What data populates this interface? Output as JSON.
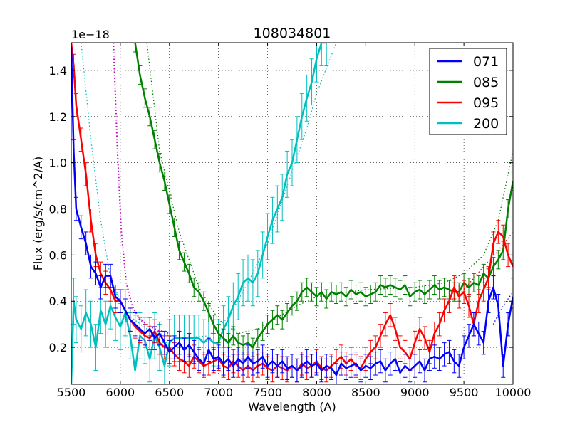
{
  "chart_data": {
    "type": "line",
    "title": "108034801",
    "xlabel": "Wavelength (A)",
    "ylabel": "Flux (erg/s/cm^2/A)",
    "offset_text": "1e−18",
    "xlim": [
      5500,
      10000
    ],
    "ylim": [
      0.04,
      1.52
    ],
    "grid": true,
    "legend_position": "top-right",
    "x_ticks": [
      5500,
      6000,
      6500,
      7000,
      7500,
      8000,
      8500,
      9000,
      9500,
      10000
    ],
    "x_tick_labels": [
      "5500",
      "6000",
      "6500",
      "7000",
      "7500",
      "8000",
      "8500",
      "9000",
      "9500",
      "10000"
    ],
    "y_ticks": [
      0.2,
      0.4,
      0.6,
      0.8,
      1.0,
      1.2,
      1.4
    ],
    "y_tick_labels": [
      "0.2",
      "0.4",
      "0.6",
      "0.8",
      "1.0",
      "1.2",
      "1.4"
    ],
    "colors": {
      "blue": "#0000ff",
      "green": "#008000",
      "red": "#ff0000",
      "cyan": "#00bfbf",
      "purple": "#bf00bf",
      "grid": "#000000"
    },
    "series": [
      {
        "name": "071",
        "color": "#0000ff",
        "err": 0.05,
        "x": [
          5500,
          5525,
          5550,
          5600,
          5650,
          5700,
          5750,
          5800,
          5850,
          5900,
          5950,
          6000,
          6050,
          6100,
          6150,
          6200,
          6250,
          6300,
          6350,
          6400,
          6450,
          6500,
          6550,
          6600,
          6650,
          6700,
          6750,
          6800,
          6850,
          6900,
          6950,
          7000,
          7050,
          7100,
          7150,
          7200,
          7250,
          7300,
          7350,
          7400,
          7450,
          7500,
          7550,
          7600,
          7650,
          7700,
          7750,
          7800,
          7850,
          7900,
          7950,
          8000,
          8050,
          8100,
          8150,
          8200,
          8250,
          8300,
          8350,
          8400,
          8450,
          8500,
          8550,
          8600,
          8650,
          8700,
          8750,
          8800,
          8850,
          8900,
          8950,
          9000,
          9050,
          9100,
          9150,
          9200,
          9250,
          9300,
          9350,
          9400,
          9450,
          9500,
          9550,
          9600,
          9650,
          9700,
          9750,
          9800,
          9850,
          9900,
          9950,
          10000
        ],
        "y": [
          1.5,
          1.05,
          0.8,
          0.72,
          0.65,
          0.55,
          0.52,
          0.46,
          0.51,
          0.51,
          0.42,
          0.4,
          0.36,
          0.32,
          0.3,
          0.28,
          0.26,
          0.28,
          0.24,
          0.26,
          0.22,
          0.18,
          0.2,
          0.22,
          0.19,
          0.21,
          0.18,
          0.15,
          0.13,
          0.19,
          0.15,
          0.16,
          0.13,
          0.15,
          0.12,
          0.15,
          0.13,
          0.16,
          0.13,
          0.14,
          0.16,
          0.12,
          0.14,
          0.12,
          0.14,
          0.11,
          0.12,
          0.1,
          0.12,
          0.14,
          0.12,
          0.13,
          0.1,
          0.12,
          0.11,
          0.08,
          0.13,
          0.11,
          0.12,
          0.13,
          0.1,
          0.12,
          0.11,
          0.13,
          0.14,
          0.1,
          0.13,
          0.15,
          0.09,
          0.12,
          0.1,
          0.12,
          0.14,
          0.1,
          0.15,
          0.16,
          0.15,
          0.17,
          0.18,
          0.14,
          0.12,
          0.2,
          0.25,
          0.3,
          0.26,
          0.22,
          0.4,
          0.46,
          0.38,
          0.12,
          0.3,
          0.42
        ]
      },
      {
        "name": "085",
        "color": "#008000",
        "err": 0.04,
        "x": [
          6150,
          6200,
          6250,
          6300,
          6350,
          6400,
          6450,
          6500,
          6550,
          6600,
          6650,
          6700,
          6750,
          6800,
          6850,
          6900,
          6950,
          7000,
          7050,
          7100,
          7150,
          7200,
          7250,
          7300,
          7350,
          7400,
          7450,
          7500,
          7550,
          7600,
          7650,
          7700,
          7750,
          7800,
          7850,
          7900,
          7950,
          8000,
          8050,
          8100,
          8150,
          8200,
          8250,
          8300,
          8350,
          8400,
          8450,
          8500,
          8550,
          8600,
          8650,
          8700,
          8750,
          8800,
          8850,
          8900,
          8950,
          9000,
          9050,
          9100,
          9150,
          9200,
          9250,
          9300,
          9350,
          9400,
          9450,
          9500,
          9550,
          9600,
          9650,
          9700,
          9750,
          9800,
          9850,
          9900,
          9950,
          10000
        ],
        "y": [
          1.52,
          1.38,
          1.28,
          1.2,
          1.1,
          1.0,
          0.92,
          0.82,
          0.72,
          0.62,
          0.57,
          0.52,
          0.46,
          0.44,
          0.4,
          0.35,
          0.3,
          0.26,
          0.24,
          0.22,
          0.25,
          0.22,
          0.21,
          0.22,
          0.2,
          0.24,
          0.27,
          0.3,
          0.32,
          0.34,
          0.32,
          0.35,
          0.38,
          0.4,
          0.44,
          0.46,
          0.44,
          0.42,
          0.44,
          0.41,
          0.44,
          0.43,
          0.44,
          0.42,
          0.45,
          0.43,
          0.44,
          0.42,
          0.43,
          0.44,
          0.47,
          0.46,
          0.47,
          0.46,
          0.45,
          0.47,
          0.42,
          0.44,
          0.45,
          0.43,
          0.45,
          0.47,
          0.45,
          0.46,
          0.45,
          0.44,
          0.44,
          0.48,
          0.46,
          0.48,
          0.47,
          0.52,
          0.5,
          0.55,
          0.58,
          0.62,
          0.8,
          0.92
        ]
      },
      {
        "name": "095",
        "color": "#ff0000",
        "err": 0.05,
        "x": [
          5500,
          5525,
          5550,
          5600,
          5650,
          5700,
          5750,
          5800,
          5850,
          5900,
          5950,
          6000,
          6050,
          6100,
          6150,
          6200,
          6250,
          6300,
          6350,
          6400,
          6450,
          6500,
          6550,
          6600,
          6650,
          6700,
          6750,
          6800,
          6850,
          6900,
          6950,
          7000,
          7050,
          7100,
          7150,
          7200,
          7250,
          7300,
          7350,
          7400,
          7450,
          7500,
          7550,
          7600,
          7650,
          7700,
          7750,
          7800,
          7850,
          7900,
          7950,
          8000,
          8050,
          8100,
          8150,
          8200,
          8250,
          8300,
          8350,
          8400,
          8450,
          8500,
          8550,
          8600,
          8650,
          8700,
          8750,
          8800,
          8850,
          8900,
          8950,
          9000,
          9050,
          9100,
          9150,
          9200,
          9250,
          9300,
          9350,
          9400,
          9450,
          9500,
          9550,
          9600,
          9650,
          9700,
          9750,
          9800,
          9850,
          9900,
          9950,
          10000
        ],
        "y": [
          1.52,
          1.42,
          1.25,
          1.1,
          0.95,
          0.75,
          0.6,
          0.52,
          0.48,
          0.45,
          0.4,
          0.4,
          0.36,
          0.32,
          0.29,
          0.27,
          0.25,
          0.24,
          0.27,
          0.22,
          0.2,
          0.2,
          0.17,
          0.15,
          0.14,
          0.12,
          0.16,
          0.14,
          0.12,
          0.13,
          0.14,
          0.15,
          0.12,
          0.11,
          0.14,
          0.12,
          0.1,
          0.12,
          0.1,
          0.12,
          0.13,
          0.11,
          0.1,
          0.12,
          0.11,
          0.1,
          0.12,
          0.1,
          0.13,
          0.11,
          0.12,
          0.14,
          0.11,
          0.1,
          0.12,
          0.14,
          0.16,
          0.13,
          0.15,
          0.12,
          0.11,
          0.15,
          0.18,
          0.2,
          0.25,
          0.3,
          0.34,
          0.28,
          0.2,
          0.18,
          0.15,
          0.22,
          0.28,
          0.24,
          0.18,
          0.26,
          0.3,
          0.36,
          0.4,
          0.46,
          0.42,
          0.44,
          0.38,
          0.3,
          0.4,
          0.45,
          0.5,
          0.65,
          0.7,
          0.68,
          0.6,
          0.55
        ]
      },
      {
        "name": "200",
        "color": "#00bfbf",
        "err": 0.1,
        "x": [
          5500,
          5525,
          5550,
          5600,
          5650,
          5700,
          5750,
          5800,
          5850,
          5900,
          5950,
          6000,
          6050,
          6100,
          6150,
          6200,
          6250,
          6300,
          6350,
          6400,
          6450,
          6500,
          6550,
          6600,
          6650,
          6700,
          6750,
          6800,
          6850,
          6900,
          6950,
          7000,
          7050,
          7100,
          7150,
          7200,
          7250,
          7300,
          7350,
          7400,
          7450,
          7500,
          7550,
          7600,
          7650,
          7700,
          7750,
          7800,
          7850,
          7900,
          7950,
          8000,
          8050,
          8100
        ],
        "y": [
          0.04,
          0.4,
          0.32,
          0.28,
          0.35,
          0.3,
          0.2,
          0.36,
          0.3,
          0.38,
          0.33,
          0.29,
          0.35,
          0.25,
          0.1,
          0.25,
          0.23,
          0.15,
          0.25,
          0.2,
          0.12,
          0.22,
          0.24,
          0.24,
          0.24,
          0.24,
          0.24,
          0.24,
          0.22,
          0.24,
          0.22,
          0.22,
          0.28,
          0.32,
          0.38,
          0.42,
          0.48,
          0.5,
          0.48,
          0.52,
          0.6,
          0.68,
          0.75,
          0.8,
          0.85,
          0.95,
          1.0,
          1.1,
          1.2,
          1.28,
          1.35,
          1.45,
          1.52,
          1.52
        ]
      }
    ],
    "model_curves": [
      {
        "name": "071 model",
        "color": "#0000ff",
        "points": [
          [
            9800,
            0.3
          ],
          [
            9900,
            0.38
          ],
          [
            10000,
            0.44
          ]
        ]
      },
      {
        "name": "085 model",
        "color": "#008000",
        "points": [
          [
            6270,
            1.52
          ],
          [
            6400,
            1.05
          ],
          [
            6600,
            0.7
          ],
          [
            6800,
            0.46
          ],
          [
            7000,
            0.32
          ],
          [
            7200,
            0.26
          ],
          [
            7400,
            0.28
          ],
          [
            7600,
            0.33
          ],
          [
            7800,
            0.38
          ],
          [
            8000,
            0.42
          ],
          [
            8500,
            0.45
          ],
          [
            9000,
            0.46
          ],
          [
            9300,
            0.48
          ],
          [
            9500,
            0.52
          ],
          [
            9700,
            0.6
          ],
          [
            9850,
            0.75
          ],
          [
            10000,
            1.05
          ]
        ]
      },
      {
        "name": "095 model",
        "color": "#ff0000",
        "points": [
          [
            9300,
            0.38
          ],
          [
            9500,
            0.45
          ],
          [
            9700,
            0.55
          ],
          [
            9850,
            0.62
          ],
          [
            10000,
            0.7
          ]
        ]
      },
      {
        "name": "200 model",
        "color": "#00bfbf",
        "points": [
          [
            5600,
            1.52
          ],
          [
            5700,
            1.1
          ],
          [
            5800,
            0.75
          ],
          [
            5900,
            0.5
          ],
          [
            6050,
            0.35
          ],
          [
            6300,
            0.27
          ],
          [
            6600,
            0.24
          ],
          [
            6900,
            0.25
          ],
          [
            7100,
            0.33
          ],
          [
            7300,
            0.48
          ],
          [
            7500,
            0.65
          ],
          [
            7700,
            0.9
          ],
          [
            7900,
            1.15
          ],
          [
            8000,
            1.3
          ],
          [
            8200,
            1.52
          ]
        ]
      },
      {
        "name": "purple model",
        "color": "#bf00bf",
        "points": [
          [
            5930,
            1.52
          ],
          [
            5970,
            1.05
          ],
          [
            6010,
            0.7
          ],
          [
            6060,
            0.48
          ],
          [
            6120,
            0.38
          ],
          [
            6200,
            0.32
          ],
          [
            6350,
            0.28
          ],
          [
            6500,
            0.26
          ]
        ]
      }
    ]
  }
}
